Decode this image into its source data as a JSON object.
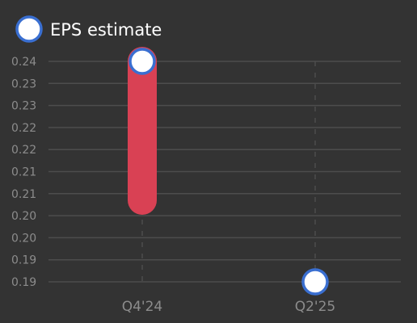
{
  "chart_data": {
    "type": "scatter",
    "title": "",
    "xlabel": "",
    "ylabel": "",
    "categories": [
      "Q4'24",
      "Q2'25"
    ],
    "y_tick_labels": [
      "0.24",
      "0.23",
      "0.23",
      "0.22",
      "0.22",
      "0.21",
      "0.21",
      "0.20",
      "0.20",
      "0.19",
      "0.19"
    ],
    "ylim": [
      0.1875,
      0.2375
    ],
    "grid": true,
    "legend": {
      "position": "top-left",
      "entries": [
        "EPS estimate"
      ]
    },
    "series": [
      {
        "name": "EPS estimate",
        "values": [
          0.2375,
          0.1875
        ]
      }
    ],
    "ranges": [
      {
        "category": "Q4'24",
        "low": 0.206,
        "high": 0.2375
      }
    ],
    "colors": {
      "background": "#333333",
      "grid": "#4d4d4d",
      "range_bar": "#d94154",
      "marker_fill": "#ffffff",
      "marker_stroke": "#3a6fd1",
      "tick_text": "#8c8c8c",
      "legend_text": "#ffffff"
    }
  }
}
